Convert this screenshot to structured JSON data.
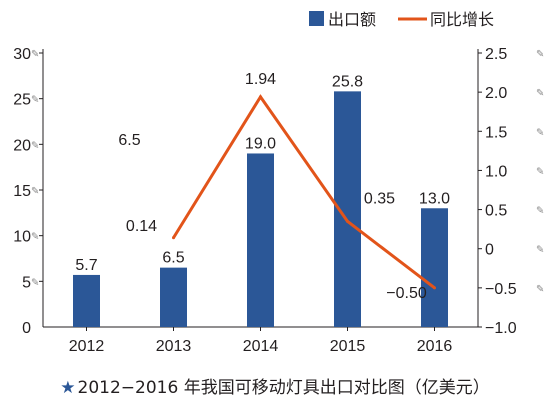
{
  "chart_data": {
    "type": "bar",
    "categories": [
      "2012",
      "2013",
      "2014",
      "2015",
      "2016"
    ],
    "series": [
      {
        "name": "出口额",
        "type": "bar",
        "axis": "left",
        "color": "#2b5797",
        "values": [
          5.7,
          6.5,
          19.0,
          25.8,
          13.0
        ],
        "labels": [
          "5.7",
          "6.5",
          "19.0",
          "25.8",
          "13.0"
        ]
      },
      {
        "name": "同比增长",
        "type": "line",
        "axis": "right",
        "color": "#e2541a",
        "values": [
          0.14,
          1.94,
          0.35,
          -0.5
        ],
        "x": [
          "2013",
          "2014",
          "2015",
          "2016"
        ],
        "labels": [
          "0.14",
          "1.94",
          "0.35",
          "−0.50"
        ]
      }
    ],
    "left_axis": {
      "ticks": [
        "30",
        "25",
        "20",
        "15",
        "10",
        "5",
        "0"
      ],
      "tick_values": [
        30,
        25,
        20,
        15,
        10,
        5,
        0
      ],
      "ylim": [
        0,
        30
      ]
    },
    "right_axis": {
      "ticks": [
        "2.5",
        "2.0",
        "1.5",
        "1.0",
        "0.5",
        "0",
        "−0.5",
        "−1.0"
      ],
      "tick_values": [
        2.5,
        2.0,
        1.5,
        1.0,
        0.5,
        0,
        -0.5,
        -1.0
      ],
      "ylim": [
        -1.0,
        2.5
      ]
    },
    "annotations": [
      {
        "text": "6.5",
        "axis": "left",
        "x": "2013",
        "y": 19.9
      }
    ],
    "legend": {
      "position": "top-right",
      "items": [
        "出口额",
        "同比增长"
      ]
    },
    "grid": false
  },
  "caption": {
    "star": "★",
    "text": "2012−2016 年我国可移动灯具出口对比图（亿美元）"
  }
}
